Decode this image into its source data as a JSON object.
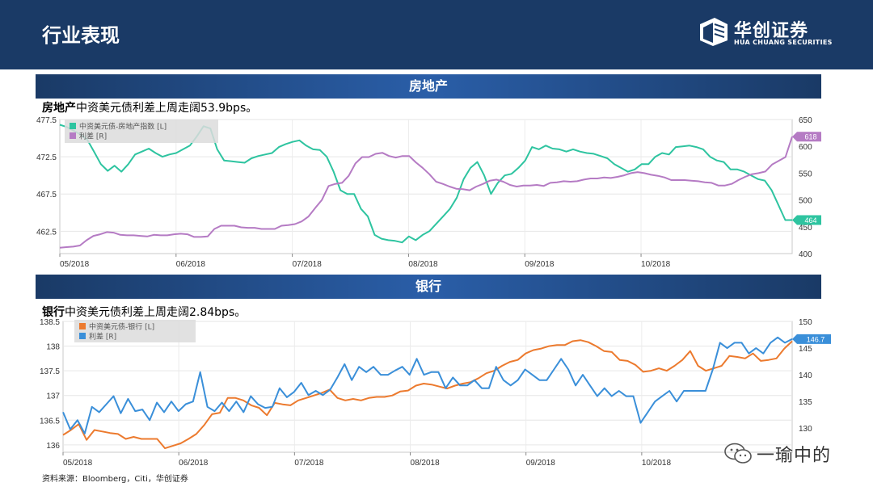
{
  "header": {
    "title": "行业表现",
    "logo_cn": "华创证券",
    "logo_en": "HUA CHUANG SECURITIES"
  },
  "sections": [
    {
      "band": "房地产",
      "caption_bold": "房地产",
      "caption_rest": "中资美元债利差上周走阔53.9bps。"
    },
    {
      "band": "银行",
      "caption_bold": "银行",
      "caption_rest": "中资美元债利差上周走阔2.84bps。"
    }
  ],
  "source": "资料来源：Bloomberg，Citi，华创证券",
  "watermark": "一瑜中的",
  "colors": {
    "header": "#1a3a66",
    "green": "#2ec4a0",
    "purple": "#b57bc4",
    "orange": "#ec7a2e",
    "blue": "#3a8fd9"
  },
  "chart_data": [
    {
      "type": "line",
      "x_tick_labels": [
        "05/2018",
        "06/2018",
        "07/2018",
        "08/2018",
        "09/2018",
        "10/2018"
      ],
      "y_left_ticks": [
        "477.5",
        "472.5",
        "467.5",
        "462.5"
      ],
      "y_left_range": [
        459.5,
        477.5
      ],
      "y_right_ticks": [
        "650",
        "600",
        "550",
        "500",
        "450",
        "400"
      ],
      "y_right_range": [
        400,
        650
      ],
      "legend": "top-left",
      "grid": true,
      "series": [
        {
          "name": "中资美元债-房地产指数 [L]",
          "axis": "left",
          "color": "#2ec4a0",
          "last_label": "464",
          "values": [
            476.8,
            476.5,
            476.0,
            475.5,
            474.8,
            473.2,
            471.5,
            470.6,
            471.3,
            470.5,
            471.5,
            472.8,
            473.2,
            473.6,
            473.0,
            472.5,
            472.8,
            473.0,
            473.5,
            474.0,
            475.2,
            476.6,
            476.3,
            473.5,
            472.0,
            471.9,
            471.8,
            471.7,
            472.3,
            472.6,
            472.8,
            473.0,
            473.8,
            474.2,
            474.5,
            474.7,
            474.0,
            473.5,
            473.4,
            472.5,
            470.5,
            468.0,
            467.5,
            467.5,
            465.5,
            464.5,
            462.0,
            461.5,
            461.3,
            461.2,
            461.0,
            461.8,
            461.3,
            462.0,
            462.5,
            463.5,
            464.5,
            465.5,
            467.0,
            469.5,
            471.0,
            471.8,
            470.0,
            467.5,
            469.0,
            470.0,
            470.2,
            471.0,
            472.0,
            473.8,
            473.5,
            474.0,
            473.6,
            473.5,
            473.2,
            473.5,
            473.2,
            473.0,
            472.9,
            472.6,
            472.3,
            471.5,
            471.0,
            470.5,
            470.8,
            471.5,
            471.5,
            472.5,
            473.0,
            472.8,
            473.8,
            473.9,
            474.0,
            473.8,
            473.5,
            472.5,
            472.0,
            471.8,
            470.8,
            470.8,
            470.5,
            470.0,
            469.5,
            469.3,
            468.0,
            466.0,
            464.0,
            464.0
          ]
        },
        {
          "name": "利差 [R]",
          "axis": "right",
          "color": "#b57bc4",
          "last_label": "618",
          "values": [
            411,
            412,
            413,
            415,
            425,
            433,
            436,
            440,
            439,
            435,
            434,
            434,
            433,
            432,
            435,
            434,
            434,
            436,
            437,
            436,
            431,
            431,
            432,
            446,
            452,
            452,
            452,
            449,
            448,
            448,
            446,
            446,
            446,
            452,
            453,
            455,
            460,
            469,
            485,
            500,
            526,
            530,
            532,
            545,
            568,
            580,
            580,
            586,
            588,
            582,
            579,
            582,
            582,
            570,
            560,
            548,
            534,
            530,
            525,
            521,
            520,
            518,
            525,
            530,
            536,
            538,
            534,
            528,
            525,
            527,
            527,
            528,
            526,
            532,
            533,
            535,
            534,
            535,
            538,
            540,
            540,
            542,
            541,
            543,
            546,
            550,
            552,
            550,
            547,
            545,
            542,
            537,
            537,
            537,
            536,
            535,
            533,
            532,
            527,
            527,
            530,
            537,
            543,
            548,
            550,
            553,
            566,
            573,
            580,
            618
          ]
        }
      ]
    },
    {
      "type": "line",
      "x_tick_labels": [
        "05/2018",
        "06/2018",
        "07/2018",
        "08/2018",
        "09/2018",
        "10/2018"
      ],
      "y_left_ticks": [
        "138.5",
        "138",
        "137.5",
        "137",
        "136.5",
        "136"
      ],
      "y_left_range": [
        135.85,
        138.5
      ],
      "y_right_ticks": [
        "150",
        "145",
        "140",
        "135",
        "130"
      ],
      "y_right_range": [
        125.5,
        150
      ],
      "legend": "top-left",
      "grid": true,
      "series": [
        {
          "name": "中资美元债-银行 [L]",
          "axis": "left",
          "color": "#ec7a2e",
          "values": [
            136.2,
            136.3,
            136.42,
            136.1,
            136.3,
            136.27,
            136.24,
            136.22,
            136.12,
            136.16,
            136.12,
            136.12,
            136.12,
            135.93,
            135.98,
            136.03,
            136.12,
            136.22,
            136.4,
            136.62,
            136.65,
            136.95,
            136.95,
            136.9,
            136.8,
            136.75,
            136.6,
            136.85,
            136.82,
            136.8,
            136.9,
            136.95,
            137.0,
            137.05,
            137.12,
            136.95,
            136.9,
            136.93,
            136.9,
            136.95,
            136.97,
            136.97,
            137.0,
            137.08,
            137.1,
            137.2,
            137.24,
            137.22,
            137.18,
            137.14,
            137.2,
            137.24,
            137.27,
            137.35,
            137.45,
            137.5,
            137.6,
            137.68,
            137.72,
            137.85,
            137.92,
            137.95,
            138.0,
            138.02,
            138.02,
            138.1,
            138.12,
            138.08,
            138.0,
            137.9,
            137.88,
            137.72,
            137.7,
            137.62,
            137.48,
            137.5,
            137.55,
            137.5,
            137.6,
            137.72,
            137.9,
            137.6,
            137.5,
            137.55,
            137.6,
            137.8,
            137.78,
            137.75,
            137.85,
            137.7,
            137.72,
            137.75,
            137.95,
            138.1
          ]
        },
        {
          "name": "利差 [R]",
          "axis": "right",
          "color": "#3a8fd9",
          "last_label": "146.7",
          "values": [
            133,
            129.8,
            131.5,
            129,
            134,
            133,
            134.5,
            136,
            132.8,
            135.5,
            133.2,
            133.5,
            131.5,
            134.8,
            133,
            135,
            133.2,
            134.5,
            135,
            140.5,
            134,
            133.2,
            134.8,
            133.2,
            135,
            133,
            136,
            134.5,
            133.8,
            134,
            137.5,
            135.8,
            136.8,
            138.5,
            136.2,
            137,
            136.2,
            137.2,
            139.5,
            142,
            139,
            141.5,
            140.5,
            141.5,
            140,
            140,
            140.8,
            141.5,
            140,
            143,
            140,
            140.5,
            140.5,
            137.5,
            139.5,
            138,
            138,
            139,
            137.5,
            137.5,
            141.5,
            139,
            138,
            139,
            141,
            140,
            139,
            139,
            141,
            143,
            141,
            138,
            140,
            138,
            136,
            137.5,
            136,
            137,
            136,
            136,
            131,
            133,
            135,
            136,
            137,
            135,
            137,
            137,
            137,
            137,
            141,
            146,
            145,
            146,
            146,
            144,
            145,
            144,
            146,
            147,
            146,
            146.7
          ]
        }
      ]
    }
  ]
}
